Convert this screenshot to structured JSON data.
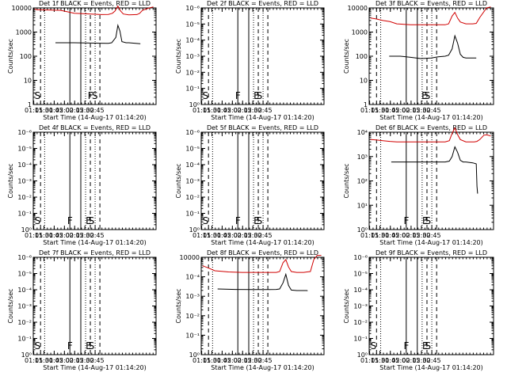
{
  "chart_data": [
    {
      "id": "det1",
      "type": "line",
      "title": "Det 1f BLACK = Events, RED = LLD",
      "xlabel": "Start Time (14-Aug-17 01:14:20)",
      "ylabel": "Counts/sec",
      "yscale": "log",
      "ylim": [
        1,
        10000
      ],
      "yticks": [
        "1",
        "10",
        "100",
        "1000",
        "10000"
      ],
      "markers": [
        {
          "label": "S",
          "x": "01:15"
        },
        {
          "label": "F",
          "x": "02:33"
        },
        {
          "label": "S",
          "x": "02:39"
        }
      ],
      "series": [
        {
          "name": "BLACK",
          "color": "#000000",
          "x": [
            32.5,
            60,
            110,
            115,
            121,
            124,
            127,
            130,
            136,
            140,
            157
          ],
          "y": [
            360,
            360,
            340,
            360,
            600,
            1900,
            1100,
            400,
            360,
            360,
            330
          ]
        },
        {
          "name": "RED",
          "color": "#d00000",
          "x": [
            2,
            5,
            40,
            60,
            100,
            110,
            116,
            120,
            124,
            128,
            132,
            140,
            152,
            156,
            160,
            170,
            176
          ],
          "y": [
            9000,
            8400,
            8000,
            6000,
            5300,
            5400,
            6000,
            7500,
            12000,
            7500,
            5600,
            5200,
            5300,
            6000,
            8000,
            10000,
            11000
          ]
        }
      ]
    },
    {
      "id": "det2",
      "type": "line",
      "title": "Det 2f BLACK = Events, RED = LLD",
      "xlabel": "Start Time (14-Aug-17 01:14:20)",
      "ylabel": "Counts/sec",
      "yscale": "log",
      "ylim": [
        1,
        1e-06
      ],
      "yticks": [
        "10⁰",
        "10⁻¹",
        "10⁻²",
        "10⁻³",
        "10⁻⁴",
        "10⁻⁵",
        "10⁻⁶"
      ],
      "markers": [
        {
          "label": "S",
          "x": "01:15"
        },
        {
          "label": "F",
          "x": "02:03"
        },
        {
          "label": "E",
          "x": "02:30"
        },
        {
          "label": "S",
          "x": "02:34"
        }
      ],
      "series": []
    },
    {
      "id": "det3",
      "type": "line",
      "title": "Det 3f BLACK = Events, RED = LLD",
      "xlabel": "Start Time (14-Aug-17 01:14:20)",
      "ylabel": "Counts/sec",
      "yscale": "log",
      "ylim": [
        1,
        10000
      ],
      "yticks": [
        "1",
        "10",
        "100",
        "1000",
        "10000"
      ],
      "markers": [
        {
          "label": "E",
          "x": "02:29"
        },
        {
          "label": "S",
          "x": "02:33"
        }
      ],
      "series": [
        {
          "name": "BLACK",
          "color": "#000000",
          "x": [
            29,
            45,
            60,
            75,
            90,
            100,
            110,
            115,
            120,
            124,
            128,
            132,
            136,
            140,
            150,
            155
          ],
          "y": [
            100,
            100,
            90,
            80,
            85,
            95,
            100,
            110,
            200,
            700,
            350,
            120,
            90,
            85,
            85,
            85
          ]
        },
        {
          "name": "RED",
          "color": "#d00000",
          "x": [
            2,
            10,
            20,
            30,
            40,
            60,
            90,
            110,
            115,
            120,
            124,
            128,
            132,
            140,
            150,
            155,
            160,
            170,
            176
          ],
          "y": [
            3800,
            3500,
            3000,
            2700,
            2200,
            2000,
            2000,
            2000,
            2200,
            4600,
            6500,
            3800,
            2600,
            2200,
            2200,
            2300,
            4000,
            10000,
            11000
          ]
        }
      ]
    },
    {
      "id": "det4",
      "type": "line",
      "title": "Det 4f BLACK = Events, RED = LLD",
      "xlabel": "Start Time (14-Aug-17 01:14:20)",
      "ylabel": "Counts/sec",
      "yscale": "log",
      "ylim": [
        1,
        1e-06
      ],
      "yticks": [
        "10⁰",
        "10⁻¹",
        "10⁻²",
        "10⁻³",
        "10⁻⁴",
        "10⁻⁵",
        "10⁻⁶"
      ],
      "markers": [
        {
          "label": "S",
          "x": "01:15"
        },
        {
          "label": "F",
          "x": "02:03"
        },
        {
          "label": "E",
          "x": "02:30"
        },
        {
          "label": "S",
          "x": "02:34"
        }
      ],
      "series": []
    },
    {
      "id": "det5",
      "type": "line",
      "title": "Det 5f BLACK = Events, RED = LLD",
      "xlabel": "Start Time (14-Aug-17 01:14:20)",
      "ylabel": "Counts/sec",
      "yscale": "log",
      "ylim": [
        1,
        1e-06
      ],
      "yticks": [
        "10⁰",
        "10⁻¹",
        "10⁻²",
        "10⁻³",
        "10⁻⁴",
        "10⁻⁵",
        "10⁻⁶"
      ],
      "markers": [
        {
          "label": "S",
          "x": "01:15"
        },
        {
          "label": "F",
          "x": "02:03"
        },
        {
          "label": "E",
          "x": "02:30"
        },
        {
          "label": "S",
          "x": "02:34"
        }
      ],
      "series": []
    },
    {
      "id": "det6",
      "type": "line",
      "title": "Det 6f BLACK = Events, RED = LLD",
      "xlabel": "Start Time (14-Aug-17 01:14:20)",
      "ylabel": "Counts/sec",
      "yscale": "log",
      "ylim": [
        1,
        10000
      ],
      "yticks": [
        "10⁰",
        "10¹",
        "10²",
        "10³",
        "10⁴"
      ],
      "markers": [
        {
          "label": "F",
          "x": "02:03"
        },
        {
          "label": "E",
          "x": "02:30"
        },
        {
          "label": "S",
          "x": "02:34"
        }
      ],
      "series": [
        {
          "name": "BLACK",
          "color": "#000000",
          "x": [
            32,
            60,
            100,
            110,
            116,
            120,
            124,
            128,
            132,
            136,
            140,
            150,
            155,
            156,
            157
          ],
          "y": [
            600,
            600,
            600,
            600,
            650,
            1000,
            2500,
            1500,
            700,
            600,
            600,
            550,
            500,
            60,
            30
          ]
        },
        {
          "name": "RED",
          "color": "#d00000",
          "x": [
            2,
            10,
            20,
            30,
            40,
            60,
            100,
            110,
            116,
            120,
            124,
            128,
            132,
            140,
            152,
            156,
            160,
            166,
            170,
            176
          ],
          "y": [
            5000,
            4800,
            4500,
            4200,
            4000,
            4000,
            4000,
            4000,
            4500,
            9000,
            15000,
            8000,
            5000,
            4000,
            4000,
            4200,
            5000,
            7500,
            7800,
            7000
          ]
        }
      ]
    },
    {
      "id": "det7",
      "type": "line",
      "title": "Det 7f BLACK = Events, RED = LLD",
      "xlabel": "Start Time (14-Aug-17 01:14:20)",
      "ylabel": "Counts/sec",
      "yscale": "log",
      "ylim": [
        1,
        1e-06
      ],
      "yticks": [
        "10⁰",
        "10⁻¹",
        "10⁻²",
        "10⁻³",
        "10⁻⁴",
        "10⁻⁵",
        "10⁻⁶"
      ],
      "markers": [
        {
          "label": "S",
          "x": "01:15"
        },
        {
          "label": "F",
          "x": "02:03"
        },
        {
          "label": "E",
          "x": "02:30"
        },
        {
          "label": "S",
          "x": "02:34"
        }
      ],
      "series": []
    },
    {
      "id": "det8",
      "type": "line",
      "title": "Det 8f BLACK = Events, RED = LLD",
      "xlabel": "Start Time (14-Aug-17 01:14:20)",
      "ylabel": "Counts/sec",
      "yscale": "log",
      "ylim": [
        1,
        10000
      ],
      "yticks": [
        "10⁰",
        "10⁻¹",
        "10⁻²",
        "10⁻³",
        "10⁻⁴",
        "10000"
      ],
      "markers": [],
      "series": [
        {
          "name": "BLACK",
          "color": "#000000",
          "x": [
            24,
            50,
            80,
            100,
            110,
            115,
            120,
            124,
            128,
            132,
            140,
            150,
            155,
            156
          ],
          "y": [
            500,
            480,
            470,
            470,
            480,
            500,
            900,
            2000,
            700,
            450,
            430,
            430,
            430,
            420
          ]
        },
        {
          "name": "RED",
          "color": "#d00000",
          "x": [
            2,
            10,
            20,
            40,
            60,
            100,
            110,
            115,
            120,
            124,
            128,
            132,
            140,
            150,
            155,
            160,
            165,
            170,
            176
          ],
          "y": [
            4500,
            3700,
            2800,
            2500,
            2400,
            2400,
            2400,
            2600,
            6000,
            8000,
            4000,
            2600,
            2400,
            2400,
            2500,
            2600,
            8000,
            12000,
            12000
          ]
        }
      ]
    },
    {
      "id": "det9",
      "type": "line",
      "title": "Det 9f BLACK = Events, RED = LLD",
      "xlabel": "Start Time (14-Aug-17 01:14:20)",
      "ylabel": "Counts/sec",
      "yscale": "log",
      "ylim": [
        1,
        1e-06
      ],
      "yticks": [
        "10⁰",
        "10⁻¹",
        "10⁻²",
        "10⁻³",
        "10⁻⁴",
        "10⁻⁵",
        "10⁻⁶"
      ],
      "markers": [
        {
          "label": "S",
          "x": "01:15"
        },
        {
          "label": "F",
          "x": "02:03"
        },
        {
          "label": "E",
          "x": "02:30"
        },
        {
          "label": "S",
          "x": "02:34"
        }
      ],
      "series": []
    }
  ],
  "xticks": [
    "01:15",
    "01:30",
    "01:45",
    "02:00",
    "02:15",
    "02:30",
    "02:45"
  ],
  "vlines": [
    {
      "x": "01:25",
      "style": "dashed"
    },
    {
      "x": "01:31",
      "style": "dotted"
    },
    {
      "x": "02:08",
      "style": "solid"
    },
    {
      "x": "02:24",
      "style": "solid"
    },
    {
      "x": "02:31",
      "style": "dotted"
    },
    {
      "x": "02:38",
      "style": "dashed"
    },
    {
      "x": "02:45",
      "style": "dotted"
    },
    {
      "x": "02:52",
      "style": "dashed"
    }
  ]
}
